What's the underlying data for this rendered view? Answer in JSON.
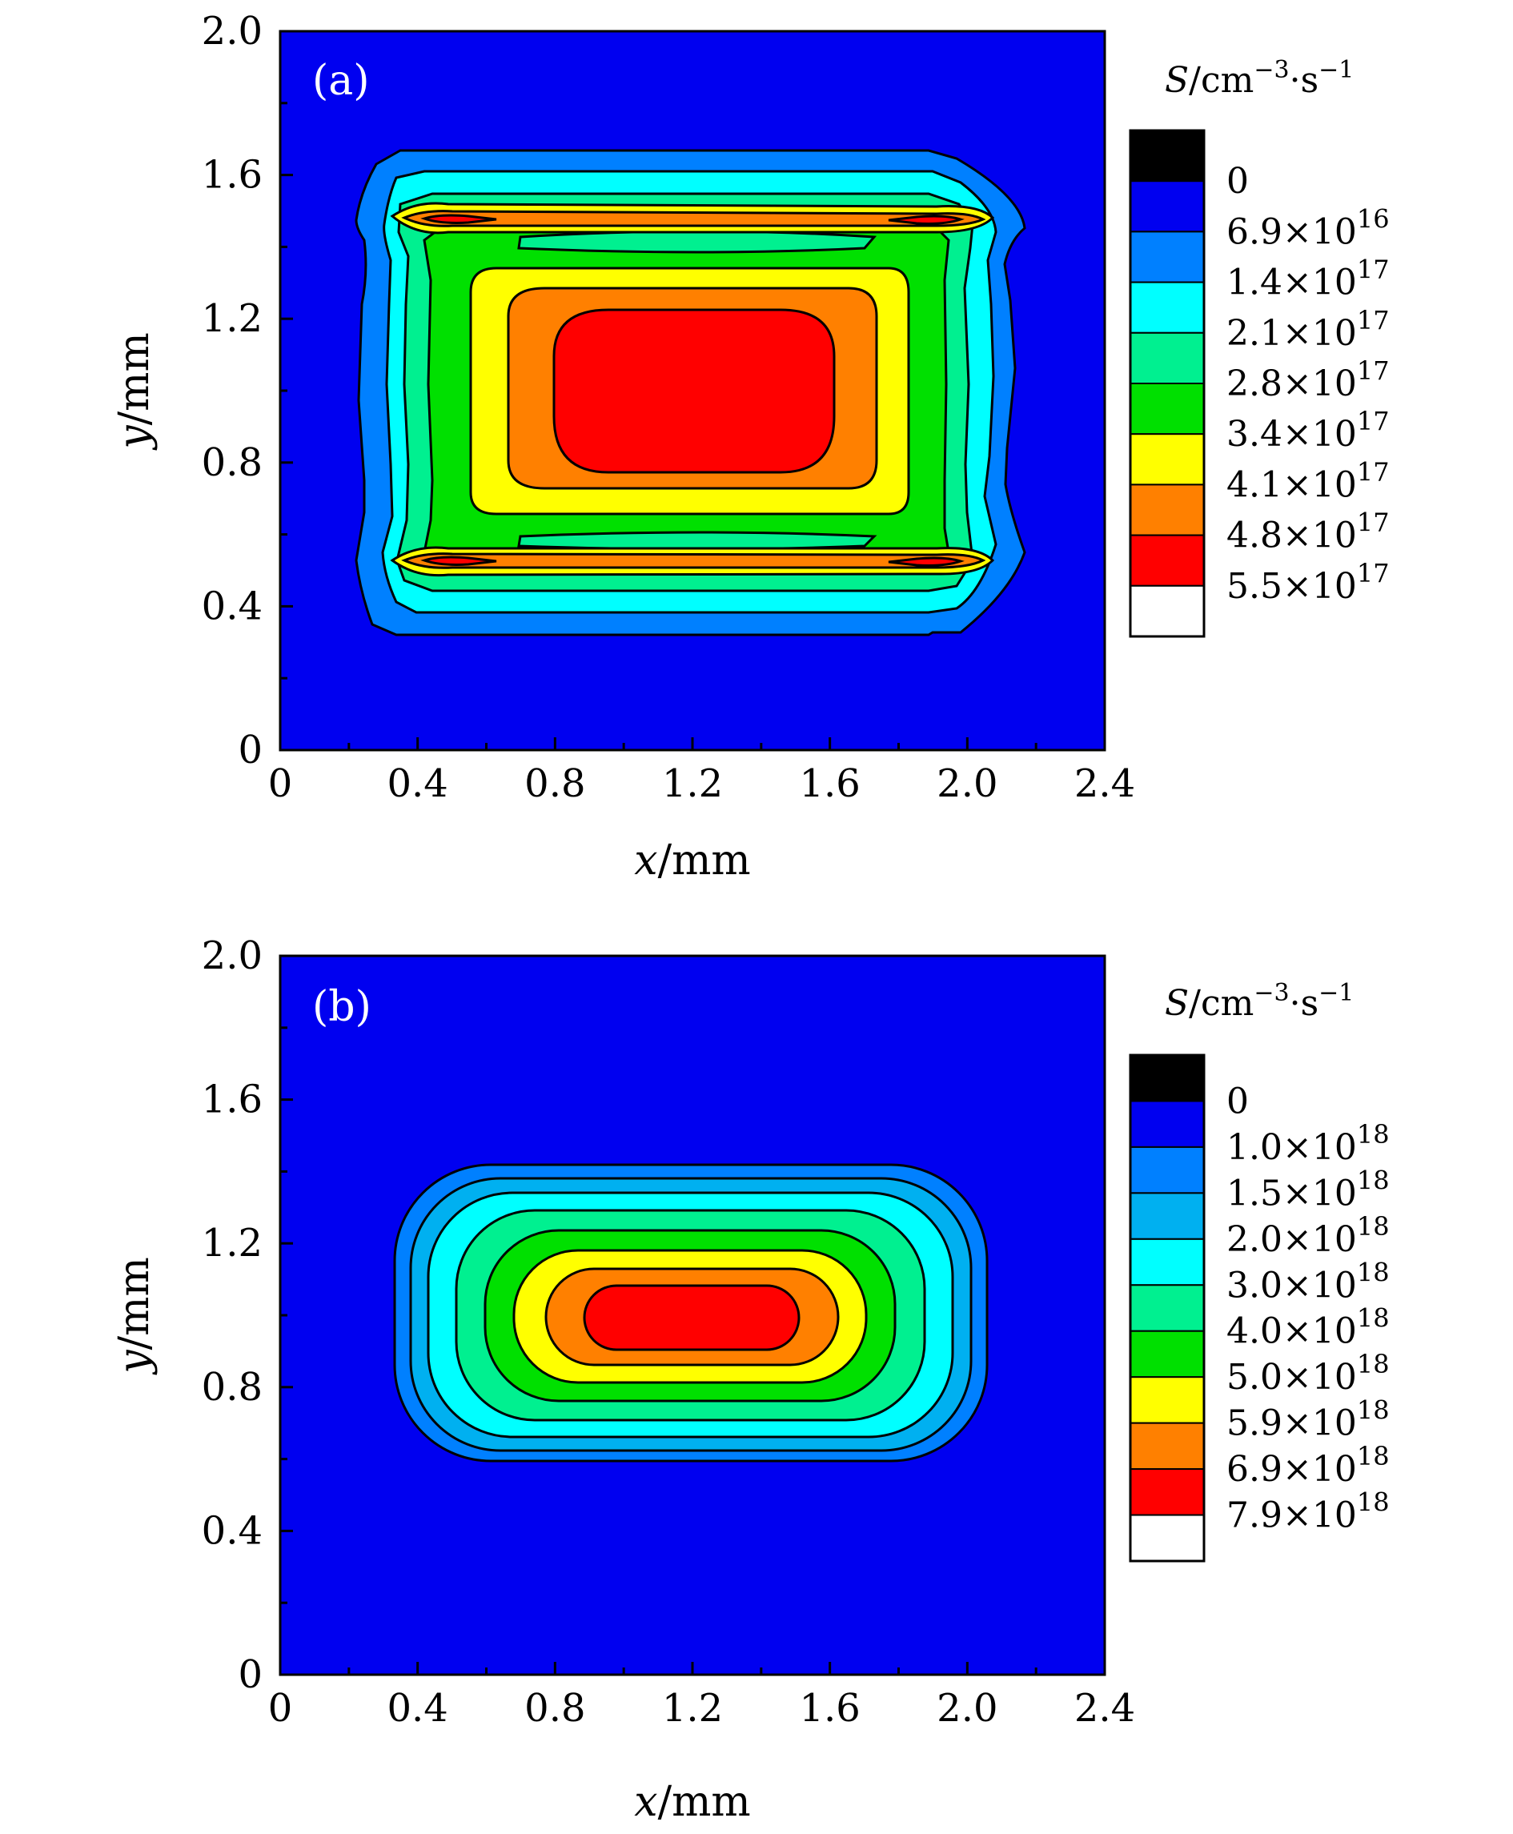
{
  "chart_data": [
    {
      "type": "contour",
      "panel_label": "(a)",
      "xlabel": "x/mm",
      "xlabel_var": "x",
      "xlabel_unit": "/mm",
      "ylabel": "y/mm",
      "ylabel_var": "y",
      "ylabel_unit": "/mm",
      "xlim": [
        0,
        2.4
      ],
      "ylim": [
        0,
        2.0
      ],
      "x_ticks": [
        "0",
        "0.4",
        "0.8",
        "1.2",
        "1.6",
        "2.0",
        "2.4"
      ],
      "y_ticks": [
        "0",
        "0.4",
        "0.8",
        "1.2",
        "1.6",
        "2.0"
      ],
      "colorbar_title": "S/cm−3·s−1",
      "colorbar_title_var": "S",
      "colorbar_title_unit": "/cm",
      "colorbar_title_exp1": "−3",
      "colorbar_title_mid": "·s",
      "colorbar_title_exp2": "−1",
      "colorbar_colors": [
        "#000000",
        "#0000f0",
        "#0080ff",
        "#00ffff",
        "#00f090",
        "#00e000",
        "#ffff00",
        "#ff8000",
        "#ff0000",
        "#ffffff"
      ],
      "levels": [
        {
          "mant": "0",
          "exp": ""
        },
        {
          "mant": "6.9×10",
          "exp": "16"
        },
        {
          "mant": "1.4×10",
          "exp": "17"
        },
        {
          "mant": "2.1×10",
          "exp": "17"
        },
        {
          "mant": "2.8×10",
          "exp": "17"
        },
        {
          "mant": "3.4×10",
          "exp": "17"
        },
        {
          "mant": "4.1×10",
          "exp": "17"
        },
        {
          "mant": "4.8×10",
          "exp": "17"
        },
        {
          "mant": "5.5×10",
          "exp": "17"
        }
      ],
      "center": [
        1.2,
        1.0
      ]
    },
    {
      "type": "contour",
      "panel_label": "(b)",
      "xlabel": "x/mm",
      "xlabel_var": "x",
      "xlabel_unit": "/mm",
      "ylabel": "y/mm",
      "ylabel_var": "y",
      "ylabel_unit": "/mm",
      "xlim": [
        0,
        2.4
      ],
      "ylim": [
        0,
        2.0
      ],
      "x_ticks": [
        "0",
        "0.4",
        "0.8",
        "1.2",
        "1.6",
        "2.0",
        "2.4"
      ],
      "y_ticks": [
        "0",
        "0.4",
        "0.8",
        "1.2",
        "1.6",
        "2.0"
      ],
      "colorbar_title": "S/cm−3·s−1",
      "colorbar_title_var": "S",
      "colorbar_title_unit": "/cm",
      "colorbar_title_exp1": "−3",
      "colorbar_title_mid": "·s",
      "colorbar_title_exp2": "−1",
      "colorbar_colors": [
        "#000000",
        "#0000f0",
        "#0080ff",
        "#00b0f0",
        "#00ffff",
        "#00f090",
        "#00e000",
        "#ffff00",
        "#ff8000",
        "#ff0000",
        "#ffffff"
      ],
      "levels": [
        {
          "mant": "0",
          "exp": ""
        },
        {
          "mant": "1.0×10",
          "exp": "18"
        },
        {
          "mant": "1.5×10",
          "exp": "18"
        },
        {
          "mant": "2.0×10",
          "exp": "18"
        },
        {
          "mant": "3.0×10",
          "exp": "18"
        },
        {
          "mant": "4.0×10",
          "exp": "18"
        },
        {
          "mant": "5.0×10",
          "exp": "18"
        },
        {
          "mant": "5.9×10",
          "exp": "18"
        },
        {
          "mant": "6.9×10",
          "exp": "18"
        },
        {
          "mant": "7.9×10",
          "exp": "18"
        }
      ],
      "center": [
        1.2,
        1.0
      ]
    }
  ]
}
